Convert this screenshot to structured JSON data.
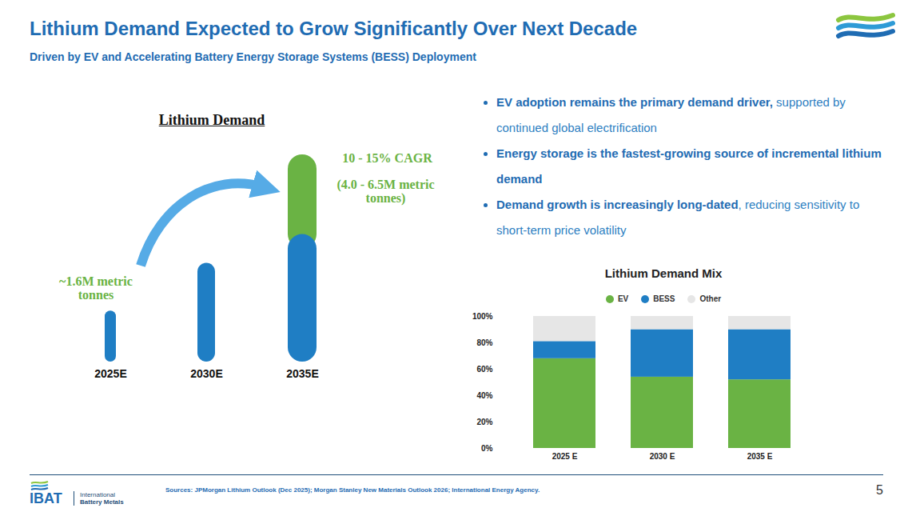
{
  "header": {
    "title": "Lithium Demand Expected to Grow Significantly Over Next Decade",
    "subtitle": "Driven by EV and Accelerating Battery Energy Storage Systems (BESS) Deployment"
  },
  "bullets": [
    {
      "bold": "EV adoption remains the primary demand driver,",
      "text": "supported by continued global electrification"
    },
    {
      "bold": "Energy storage is the fastest-growing source of incremental lithium demand"
    },
    {
      "bold": "Demand growth is increasingly long-dated",
      "text": ", reducing sensitivity to short-term price volatility"
    }
  ],
  "chart_data": [
    {
      "type": "bar",
      "title": "Lithium Demand",
      "categories": [
        "2025E",
        "2030E",
        "2035E"
      ],
      "stacked": true,
      "series": [
        {
          "color": "#1f7ec4",
          "values": [
            1.6,
            3.1,
            4.0
          ]
        },
        {
          "color": "#6ab344",
          "values": [
            0,
            0,
            2.5
          ]
        }
      ],
      "ylim": [
        0,
        6.5
      ],
      "tick_labels": "x",
      "annotations": [
        "~1.6M metric tonnes",
        "10 - 15% CAGR",
        "(4.0 - 6.5M metric tonnes)"
      ]
    },
    {
      "type": "bar",
      "title": "Lithium Demand Mix",
      "categories": [
        "2025 E",
        "2030 E",
        "2035 E"
      ],
      "stacked": true,
      "series": [
        {
          "name": "EV",
          "color": "#6ab344",
          "values": [
            68,
            54,
            52
          ]
        },
        {
          "name": "BESS",
          "color": "#1f7ec4",
          "values": [
            13,
            36,
            38
          ]
        },
        {
          "name": "Other",
          "color": "#e6e6e6",
          "values": [
            19,
            10,
            10
          ]
        }
      ],
      "ylim": [
        0,
        100
      ],
      "yticks": [
        {
          "value": 0,
          "label": "0%"
        },
        {
          "value": 20,
          "label": "20%"
        },
        {
          "value": 40,
          "label": "40%"
        },
        {
          "value": 60,
          "label": "60%"
        },
        {
          "value": 80,
          "label": "80%"
        },
        {
          "value": 100,
          "label": "100%"
        }
      ],
      "legend": "top"
    }
  ],
  "footer": {
    "sources": "Sources: JPMorgan Lithium Outlook (Dec 2025); Morgan Stanley New Materials Outlook 2026; International Energy Agency.",
    "logo": {
      "name": "IBAT",
      "line1": "International",
      "line2": "Battery Metals"
    },
    "page": 5
  }
}
